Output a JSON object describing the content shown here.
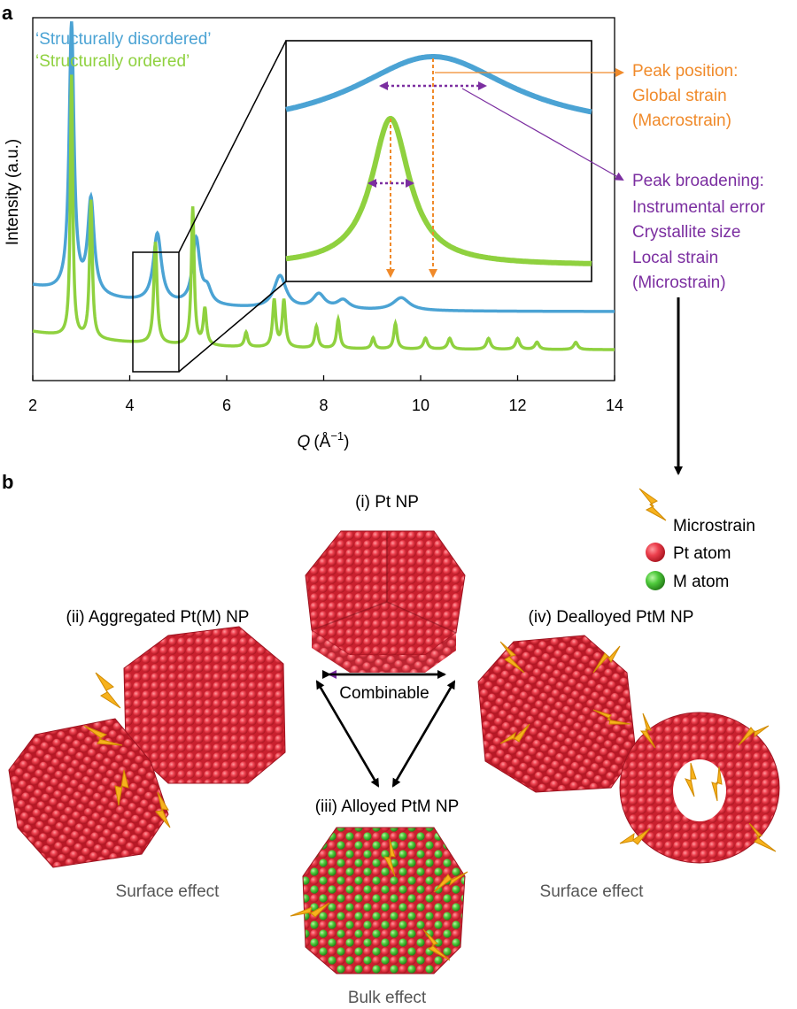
{
  "figure": {
    "panel_a": {
      "label": "a",
      "ylabel": "Intensity (a.u.)",
      "xlabel_sym": "Q",
      "xlabel_unit": "(Å",
      "xlabel_exp": "−1",
      "xlabel_close": ")",
      "ticks": [
        "2",
        "4",
        "6",
        "8",
        "10",
        "12",
        "14"
      ],
      "legend": {
        "disordered": "‘Structurally disordered’",
        "ordered": "‘Structurally ordered’"
      },
      "peak_position": {
        "line1": "Peak position:",
        "line2": "Global strain",
        "line3": "(Macrostrain)"
      },
      "peak_broadening": {
        "line1": "Peak broadening:",
        "line2": "Instrumental error",
        "line3": "Crystallite size",
        "line4": "Local strain",
        "line5": "(Microstrain)"
      }
    },
    "panel_b": {
      "label": "b",
      "np1": "(i) Pt NP",
      "np2": "(ii) Aggregated Pt(M) NP",
      "np3": "(iii) Alloyed PtM NP",
      "np4": "(iv) Dealloyed PtM NP",
      "combinable": "Combinable",
      "effect_left": "Surface effect",
      "effect_right": "Surface effect",
      "effect_bottom": "Bulk effect",
      "legend": {
        "microstrain": "Microstrain",
        "pt": "Pt atom",
        "m": "M atom"
      }
    },
    "colors": {
      "disordered": "#4ba3d4",
      "ordered": "#8fd13f",
      "orange": "#f08a2a",
      "purple": "#7b2ea0",
      "pt": "#e8384a",
      "m": "#4fca3c",
      "bolt": "#f7b21d"
    }
  },
  "chart_data": {
    "type": "line",
    "xlabel": "Q (Å−1)",
    "ylabel": "Intensity (a.u.)",
    "xlim": [
      2,
      14
    ],
    "x_ticks": [
      2,
      4,
      6,
      8,
      10,
      12,
      14
    ],
    "series": [
      {
        "name": "‘Structurally disordered’",
        "peaks": [
          {
            "q": 2.8,
            "h": 0.74,
            "w": 0.06
          },
          {
            "q": 3.2,
            "h": 0.26,
            "w": 0.08
          },
          {
            "q": 4.57,
            "h": 0.19,
            "w": 0.1
          },
          {
            "q": 5.37,
            "h": 0.18,
            "w": 0.09
          },
          {
            "q": 5.6,
            "h": 0.04,
            "w": 0.1
          },
          {
            "q": 7.1,
            "h": 0.09,
            "w": 0.15
          },
          {
            "q": 7.9,
            "h": 0.04,
            "w": 0.15
          },
          {
            "q": 8.4,
            "h": 0.025,
            "w": 0.15
          },
          {
            "q": 9.6,
            "h": 0.035,
            "w": 0.2
          }
        ],
        "background": 0.19,
        "decay": 0.07
      },
      {
        "name": "‘Structurally ordered’",
        "peaks": [
          {
            "q": 2.8,
            "h": 0.72,
            "w": 0.03
          },
          {
            "q": 3.2,
            "h": 0.38,
            "w": 0.035
          },
          {
            "q": 4.53,
            "h": 0.28,
            "w": 0.04
          },
          {
            "q": 5.3,
            "h": 0.38,
            "w": 0.035
          },
          {
            "q": 5.55,
            "h": 0.1,
            "w": 0.04
          },
          {
            "q": 6.4,
            "h": 0.04,
            "w": 0.04
          },
          {
            "q": 6.98,
            "h": 0.13,
            "w": 0.04
          },
          {
            "q": 7.18,
            "h": 0.13,
            "w": 0.04
          },
          {
            "q": 7.85,
            "h": 0.06,
            "w": 0.04
          },
          {
            "q": 8.3,
            "h": 0.08,
            "w": 0.04
          },
          {
            "q": 9.02,
            "h": 0.03,
            "w": 0.04
          },
          {
            "q": 9.48,
            "h": 0.07,
            "w": 0.04
          },
          {
            "q": 10.1,
            "h": 0.03,
            "w": 0.05
          },
          {
            "q": 10.6,
            "h": 0.03,
            "w": 0.05
          },
          {
            "q": 11.4,
            "h": 0.03,
            "w": 0.05
          },
          {
            "q": 12.0,
            "h": 0.03,
            "w": 0.05
          },
          {
            "q": 12.4,
            "h": 0.02,
            "w": 0.05
          },
          {
            "q": 13.2,
            "h": 0.02,
            "w": 0.05
          }
        ],
        "background": 0.085,
        "decay": 0.05
      }
    ]
  }
}
